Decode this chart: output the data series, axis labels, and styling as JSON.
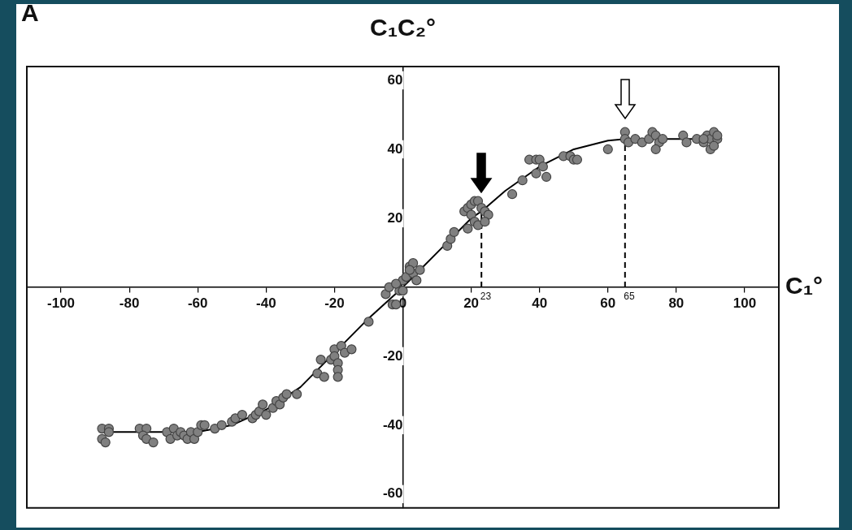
{
  "chart_data": {
    "type": "scatter",
    "xlabel": "C₁°",
    "ylabel": "C₁C₂°",
    "xlim": [
      -110,
      110
    ],
    "ylim": [
      -64,
      64
    ],
    "xticks": [
      -100,
      -80,
      -60,
      -40,
      -20,
      0,
      20,
      40,
      60,
      80,
      100
    ],
    "yticks": [
      -60,
      -40,
      -20,
      0,
      20,
      40,
      60
    ],
    "grid": false,
    "legend": false,
    "marker": "circle",
    "annotations": [
      "A",
      {
        "text": "23",
        "x": 23,
        "y": 0
      },
      {
        "text": "65",
        "x": 65,
        "y": 0
      }
    ],
    "series": [
      {
        "color": "#808080",
        "x": [
          -88,
          -86,
          -88,
          -87,
          -86,
          -77,
          -75,
          -76,
          -75,
          -73,
          -69,
          -68,
          -67,
          -66,
          -65,
          -64,
          -63,
          -62,
          -61,
          -60,
          -59,
          -58,
          -55,
          -53,
          -50,
          -49,
          -47,
          -44,
          -43,
          -42,
          -41,
          -40,
          -38,
          -37,
          -36,
          -35,
          -34,
          -31,
          -25,
          -24,
          -23,
          -21,
          -20,
          -20,
          -19,
          -19,
          -19,
          -18,
          -17,
          -15,
          -10,
          -5,
          -3,
          -2,
          -1,
          0,
          1,
          2,
          3,
          4,
          -4,
          -2,
          0,
          3,
          2,
          5,
          13,
          14,
          15,
          18,
          19,
          20,
          21,
          22,
          20,
          21,
          19,
          23,
          24,
          25,
          22,
          24,
          32,
          35,
          37,
          39,
          40,
          41,
          39,
          42,
          47,
          49,
          50,
          51,
          60,
          65,
          65,
          66,
          68,
          70,
          72,
          73,
          74,
          75,
          74,
          76,
          82,
          83,
          86,
          88,
          89,
          90,
          91,
          92,
          90,
          91,
          92,
          88
        ],
        "values": [
          -41,
          -41,
          -44,
          -45,
          -42,
          -41,
          -41,
          -43,
          -44,
          -45,
          -42,
          -44,
          -41,
          -43,
          -42,
          -43,
          -44,
          -42,
          -44,
          -42,
          -40,
          -40,
          -41,
          -40,
          -39,
          -38,
          -37,
          -38,
          -37,
          -36,
          -34,
          -37,
          -35,
          -33,
          -34,
          -32,
          -31,
          -31,
          -25,
          -21,
          -26,
          -21,
          -18,
          -20,
          -22,
          -24,
          -26,
          -17,
          -19,
          -18,
          -10,
          -2,
          -5,
          -5,
          -1,
          2,
          3,
          6,
          4,
          2,
          0,
          1,
          -1,
          7,
          5,
          5,
          12,
          14,
          16,
          22,
          23,
          24,
          25,
          25,
          21,
          19,
          17,
          23,
          22,
          21,
          18,
          19,
          27,
          31,
          37,
          37,
          37,
          35,
          33,
          32,
          38,
          38,
          37,
          37,
          40,
          45,
          43,
          42,
          43,
          42,
          43,
          45,
          44,
          42,
          40,
          43,
          44,
          42,
          43,
          42,
          44,
          43,
          45,
          43,
          40,
          41,
          44,
          43
        ]
      },
      {
        "type": "line",
        "color": "#000000",
        "line_style": "solid",
        "marker": "none",
        "x": [
          -88,
          -60,
          -50,
          -40,
          -30,
          -20,
          -10,
          0,
          10,
          20,
          23,
          30,
          40,
          50,
          60,
          65,
          70,
          93
        ],
        "values": [
          -42,
          -42,
          -40,
          -35.5,
          -29,
          -19,
          -9,
          0,
          10,
          20,
          22,
          28,
          35,
          40,
          42.5,
          43,
          43,
          43
        ]
      },
      {
        "type": "line",
        "color": "#000000",
        "line_style": "dashed",
        "marker": "none",
        "x": [
          23,
          23
        ],
        "values": [
          0,
          22
        ]
      },
      {
        "type": "line",
        "color": "#000000",
        "line_style": "dashed",
        "marker": "none",
        "x": [
          65,
          65
        ],
        "values": [
          0,
          43
        ]
      }
    ]
  }
}
